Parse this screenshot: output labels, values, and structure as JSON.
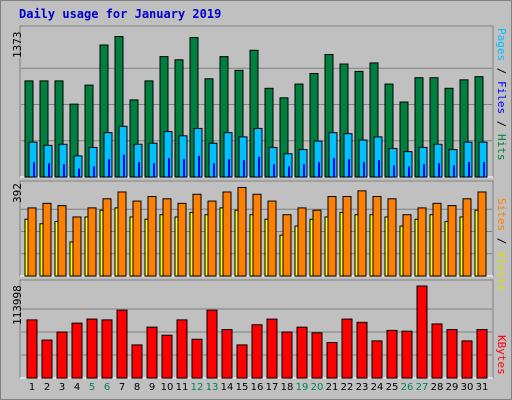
{
  "chart_data": {
    "title": "Daily usage for January 2019",
    "categories": [
      "1",
      "2",
      "3",
      "4",
      "5",
      "6",
      "7",
      "8",
      "9",
      "10",
      "11",
      "12",
      "13",
      "14",
      "15",
      "16",
      "17",
      "18",
      "19",
      "20",
      "21",
      "22",
      "23",
      "24",
      "25",
      "26",
      "27",
      "28",
      "29",
      "30",
      "31"
    ],
    "weekend_days": [
      "5",
      "6",
      "12",
      "13",
      "19",
      "20",
      "26",
      "27"
    ],
    "colors": {
      "title": "#0000cc",
      "hits": "#008040",
      "files": "#00c0ff",
      "pages": "#0000ff",
      "visits": "#ffff00",
      "sites": "#ff8000",
      "kbytes": "#ff0000",
      "weekend_label": "#00805c",
      "weekday_label": "#000000"
    },
    "panels": [
      {
        "type": "bar",
        "ymax_label": "1373",
        "ymax": 1373,
        "legend": [
          "Pages",
          "Files",
          "Hits"
        ],
        "series": [
          {
            "name": "Hits",
            "values": [
              910,
              910,
              910,
              690,
              870,
              1250,
              1330,
              730,
              910,
              1140,
              1110,
              1320,
              930,
              1140,
              1010,
              1200,
              840,
              750,
              880,
              980,
              1160,
              1070,
              1000,
              1080,
              880,
              710,
              940,
              940,
              840,
              920,
              950
            ]
          },
          {
            "name": "Files",
            "values": [
              330,
              300,
              310,
              200,
              280,
              420,
              480,
              310,
              320,
              430,
              390,
              460,
              320,
              420,
              380,
              460,
              280,
              220,
              260,
              340,
              420,
              410,
              350,
              380,
              270,
              240,
              280,
              310,
              260,
              330,
              330
            ]
          },
          {
            "name": "Pages",
            "values": [
              140,
              130,
              120,
              80,
              100,
              170,
              210,
              140,
              130,
              180,
              170,
              200,
              130,
              170,
              160,
              190,
              120,
              100,
              120,
              140,
              180,
              170,
              140,
              160,
              110,
              100,
              120,
              130,
              110,
              140,
              140
            ]
          }
        ]
      },
      {
        "type": "bar",
        "ymax_label": "392",
        "ymax": 392,
        "legend": [
          "Sites",
          "Visits"
        ],
        "series": [
          {
            "name": "Visits",
            "values": [
              250,
              230,
              240,
              150,
              260,
              290,
              300,
              260,
              250,
              270,
              260,
              280,
              270,
              300,
              290,
              270,
              250,
              180,
              220,
              250,
              260,
              280,
              270,
              270,
              260,
              220,
              250,
              270,
              240,
              260,
              290
            ]
          },
          {
            "name": "Sites",
            "values": [
              300,
              320,
              310,
              260,
              300,
              340,
              370,
              330,
              350,
              340,
              320,
              360,
              330,
              370,
              390,
              360,
              330,
              270,
              300,
              290,
              350,
              350,
              375,
              350,
              340,
              270,
              300,
              320,
              310,
              340,
              370
            ]
          }
        ]
      },
      {
        "type": "bar",
        "ymax_label": "113998",
        "ymax": 113998,
        "legend": [
          "KBytes"
        ],
        "series": [
          {
            "name": "KBytes",
            "values": [
              72000,
              47000,
              57000,
              68000,
              73000,
              72000,
              84000,
              41000,
              63000,
              53000,
              72000,
              48000,
              84000,
              60000,
              41000,
              66000,
              73000,
              57000,
              63000,
              56000,
              44000,
              73000,
              69000,
              46000,
              59000,
              58000,
              114000,
              67000,
              60000,
              46000,
              60000
            ]
          }
        ]
      }
    ]
  }
}
